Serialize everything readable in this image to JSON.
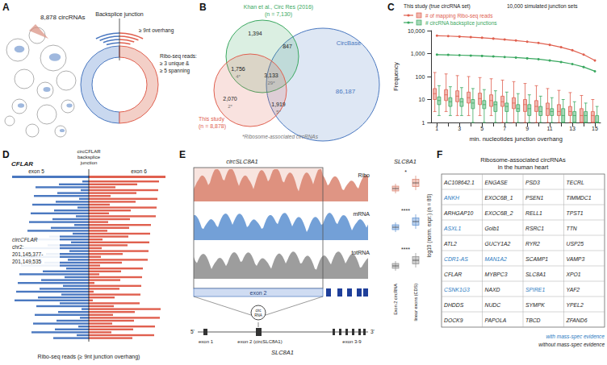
{
  "panel_A": {
    "letter": "A",
    "count_label": "8,878 circRNAs",
    "junction_label": "Backsplice junction",
    "overhang_label": "≥ 9nt overhang",
    "reads_label": [
      "Ribo-seq reads:",
      "≥ 3 unique &",
      "≥ 5 spanning"
    ]
  },
  "panel_B": {
    "letter": "B",
    "khan_label": [
      "Khan et al., Circ Res (2016)",
      "(n = 7,130)"
    ],
    "study_label": [
      "This study",
      "(n = 8,878)"
    ],
    "circbase_label": "CircBase",
    "circbase_only": "86,187",
    "regions": {
      "khan_only": "1,394",
      "khan_circbase": "847",
      "khan_study": "1,756",
      "all_three": "3,133",
      "study_only": "2,070",
      "study_circbase": "1,919"
    },
    "ribosome_counts": {
      "khan_study": "4*",
      "all_three": "29*",
      "study_only": "2*",
      "study_circbase": "5*"
    },
    "note": "*Ribosome-associated circRNAs",
    "colors": {
      "khan": "#3aa860",
      "study": "#e0604f",
      "circbase": "#4a78c0"
    }
  },
  "chart_data": {
    "type": "boxplot",
    "letter": "C",
    "x_label": "min. nucleotides junction overhang",
    "y_label": "Frequency",
    "legend_titles": [
      "This study (true circRNA set)",
      "10,000 simulated junction sets"
    ],
    "categories": [
      "1",
      null,
      "3",
      null,
      "5",
      null,
      "7",
      null,
      "9",
      null,
      "11",
      null,
      "13",
      null,
      "15"
    ],
    "log": "y",
    "ylim": [
      1,
      10000
    ],
    "yticks": [
      1,
      10,
      100,
      {
        "value": 1000,
        "label": "1,000"
      },
      {
        "value": 10000,
        "label": "10,000"
      }
    ],
    "grid": false,
    "series": [
      {
        "name": "# of mapping Ribo-seq reads",
        "type": "line",
        "color": "#e0604f",
        "marker": "circle",
        "values": [
          6000,
          5800,
          5500,
          5200,
          4900,
          4500,
          4100,
          3700,
          3300,
          2900,
          2400,
          1900,
          1400,
          900,
          500
        ]
      },
      {
        "name": "# circRNA backsplice junctions",
        "type": "line",
        "color": "#3aa860",
        "marker": "circle",
        "values": [
          900,
          880,
          850,
          820,
          790,
          750,
          710,
          670,
          620,
          570,
          500,
          430,
          350,
          260,
          170
        ]
      },
      {
        "name": "# of mapping Ribo-seq reads",
        "type": "boxplot",
        "color": "#e0604f",
        "boxes": [
          [
            3,
            10,
            18,
            30,
            150
          ],
          [
            3,
            9,
            16,
            27,
            130
          ],
          [
            2,
            8,
            14,
            24,
            110
          ],
          [
            2,
            7,
            12,
            21,
            100
          ],
          [
            2,
            6,
            11,
            19,
            90
          ],
          [
            2,
            5,
            9,
            16,
            80
          ],
          [
            1,
            5,
            8,
            14,
            70
          ],
          [
            1,
            4,
            7,
            12,
            60
          ],
          [
            1,
            3,
            6,
            10,
            50
          ],
          [
            1,
            3,
            5,
            9,
            40
          ],
          [
            1,
            2,
            4,
            7,
            30
          ],
          [
            1,
            2,
            3,
            6,
            25
          ],
          [
            1,
            2,
            3,
            5,
            20
          ],
          [
            1,
            1,
            2,
            4,
            15
          ],
          [
            1,
            1,
            2,
            3,
            10
          ]
        ]
      },
      {
        "name": "# circRNA backsplice junctions",
        "type": "boxplot",
        "color": "#3aa860",
        "boxes": [
          [
            2,
            6,
            9,
            13,
            40
          ],
          [
            2,
            5,
            8,
            12,
            36
          ],
          [
            2,
            5,
            8,
            11,
            33
          ],
          [
            1,
            4,
            7,
            10,
            30
          ],
          [
            1,
            4,
            6,
            9,
            27
          ],
          [
            1,
            3,
            6,
            8,
            24
          ],
          [
            1,
            3,
            5,
            7,
            21
          ],
          [
            1,
            3,
            4,
            6,
            18
          ],
          [
            1,
            2,
            4,
            6,
            16
          ],
          [
            1,
            2,
            3,
            5,
            14
          ],
          [
            1,
            2,
            3,
            4,
            12
          ],
          [
            1,
            1,
            2,
            4,
            10
          ],
          [
            1,
            1,
            2,
            3,
            8
          ],
          [
            1,
            1,
            2,
            3,
            7
          ],
          [
            1,
            1,
            1,
            2,
            5
          ]
        ]
      }
    ]
  },
  "panel_D": {
    "letter": "D",
    "gene": "CFLAR",
    "junction_label": [
      "circCFLAR",
      "backsplice",
      "junction"
    ],
    "exon_left": "exon 5",
    "exon_right": "exon 6",
    "coords": [
      "circCFLAR",
      "chr2:",
      "201,145,377-",
      "201,149,535"
    ],
    "reads_label": "Ribo-seq reads (≥ 9nt junction overhang)",
    "colors": {
      "left": "#4a78c0",
      "right": "#e0604f"
    }
  },
  "panel_E": {
    "letter": "E",
    "circ_title": "circSLC8A1",
    "gene_title": "SLC8A1",
    "tracks": [
      {
        "label": "Ribo",
        "color": "#d9826f",
        "stars": "*"
      },
      {
        "label": "mRNA",
        "color": "#5b8fd0",
        "stars": "****"
      },
      {
        "label": "totRNA",
        "color": "#8c8c8c",
        "stars": "****"
      }
    ],
    "exon_box": "exon 2",
    "circ_icon": [
      "circ",
      "RNA"
    ],
    "box_labels": [
      "Exon 2 circRNA",
      "linear exons (CDS)"
    ],
    "y_label": "log10 (norm. expr.) (n = 80)",
    "gene_model": {
      "five": "5'",
      "three": "3'",
      "exon1": "exon 1",
      "exon2": "exon 2 (circSLC8A1)",
      "exon39": "exon 3-9",
      "name": "SLC8A1"
    }
  },
  "panel_F": {
    "letter": "F",
    "title": [
      "Ribosome-associated circRNAs",
      "in the human heart"
    ],
    "columns": [
      [
        {
          "text": "AC108642.1",
          "mass_spec": false
        },
        {
          "text": "ANKH",
          "mass_spec": true
        },
        {
          "text": "ARHGAP10",
          "mass_spec": false
        },
        {
          "text": "ASXL1",
          "mass_spec": true
        },
        {
          "text": "ATL2",
          "mass_spec": false
        },
        {
          "text": "CDR1-AS",
          "mass_spec": true
        },
        {
          "text": "CFLAR",
          "mass_spec": false
        },
        {
          "text": "CSNK1G3",
          "mass_spec": true
        },
        {
          "text": "DHDDS",
          "mass_spec": false
        },
        {
          "text": "DOCK9",
          "mass_spec": false
        }
      ],
      [
        {
          "text": "ENGASE",
          "mass_spec": false
        },
        {
          "text": "EXOC6B_1",
          "mass_spec": false
        },
        {
          "text": "EXOC6B_2",
          "mass_spec": false
        },
        {
          "text": "Golb1",
          "mass_spec": false
        },
        {
          "text": "GUCY1A2",
          "mass_spec": false
        },
        {
          "text": "MAN1A2",
          "mass_spec": true
        },
        {
          "text": "MYBPC3",
          "mass_spec": false
        },
        {
          "text": "NAXD",
          "mass_spec": false
        },
        {
          "text": "NUDC",
          "mass_spec": false
        },
        {
          "text": "PAPOLA",
          "mass_spec": false
        }
      ],
      [
        {
          "text": "PSD3",
          "mass_spec": false
        },
        {
          "text": "PSEN1",
          "mass_spec": false
        },
        {
          "text": "RELL1",
          "mass_spec": false
        },
        {
          "text": "RSRC1",
          "mass_spec": false
        },
        {
          "text": "RYR2",
          "mass_spec": false
        },
        {
          "text": "SCAMP1",
          "mass_spec": false
        },
        {
          "text": "SLC8A1",
          "mass_spec": false
        },
        {
          "text": "SPIRE1",
          "mass_spec": true
        },
        {
          "text": "SYMPK",
          "mass_spec": false
        },
        {
          "text": "TBCD",
          "mass_spec": false
        }
      ],
      [
        {
          "text": "TECRL",
          "mass_spec": false
        },
        {
          "text": "TIMMDC1",
          "mass_spec": false
        },
        {
          "text": "TPST1",
          "mass_spec": false
        },
        {
          "text": "TTN",
          "mass_spec": false
        },
        {
          "text": "USP25",
          "mass_spec": false
        },
        {
          "text": "VAMP3",
          "mass_spec": false
        },
        {
          "text": "XPO1",
          "mass_spec": false
        },
        {
          "text": "YAF2",
          "mass_spec": false
        },
        {
          "text": "YPEL2",
          "mass_spec": false
        },
        {
          "text": "ZFAND6",
          "mass_spec": false
        }
      ]
    ],
    "legend": [
      {
        "text": "with mass-spec evidence",
        "color": "#2b7bbf"
      },
      {
        "text": "without mass-spec evidence",
        "color": "#222222"
      }
    ]
  }
}
